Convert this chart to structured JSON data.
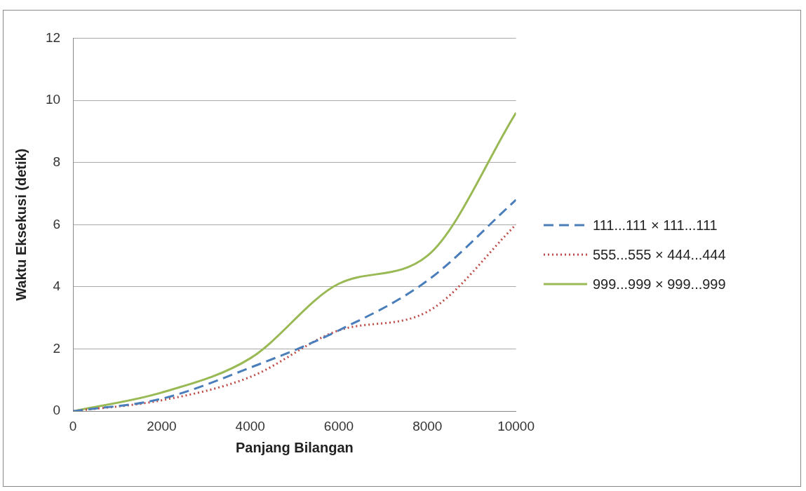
{
  "chart_data": {
    "type": "line",
    "xlabel": "Panjang Bilangan",
    "ylabel": "Waktu Eksekusi (detik)",
    "x": [
      0,
      2000,
      4000,
      6000,
      8000,
      10000
    ],
    "series": [
      {
        "name": "111...111 × 111...111",
        "color": "#4a7ebb",
        "line_style": "dashed",
        "values": [
          0,
          0.4,
          1.4,
          2.6,
          4.2,
          6.8
        ]
      },
      {
        "name": "555...555 × 444...444",
        "color": "#be4b48",
        "line_style": "dotted",
        "values": [
          0,
          0.35,
          1.1,
          2.6,
          3.2,
          6.0
        ]
      },
      {
        "name": "999...999 × 999...999",
        "color": "#98b954",
        "line_style": "solid",
        "values": [
          0,
          0.6,
          1.7,
          4.1,
          5.0,
          9.6
        ]
      }
    ],
    "xlim": [
      0,
      10000
    ],
    "xticks": [
      0,
      2000,
      4000,
      6000,
      8000,
      10000
    ],
    "ylim": [
      0,
      12
    ],
    "yticks": [
      0,
      2,
      4,
      6,
      8,
      10,
      12
    ],
    "grid": "y",
    "legend": "right",
    "marker": "none"
  }
}
